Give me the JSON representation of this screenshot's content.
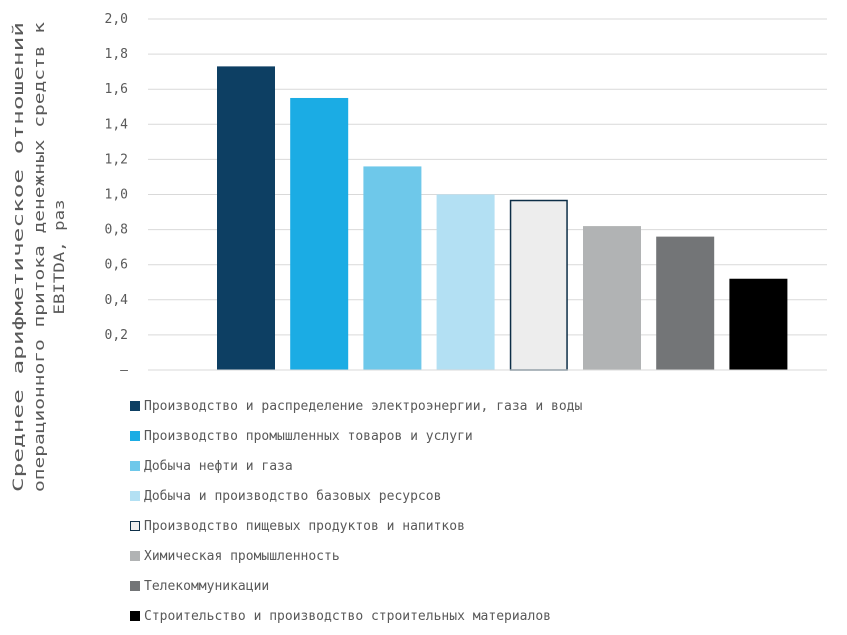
{
  "chart_data": {
    "type": "bar",
    "ylabel": "Среднее арифметическое отношений операционного притока денежных средств к EBITDA, раз",
    "ylim": [
      0,
      2.0
    ],
    "yticks": [
      {
        "value": 0,
        "label": "–"
      },
      {
        "value": 0.2,
        "label": "0,2"
      },
      {
        "value": 0.4,
        "label": "0,4"
      },
      {
        "value": 0.6,
        "label": "0,6"
      },
      {
        "value": 0.8,
        "label": "0,8"
      },
      {
        "value": 1.0,
        "label": "1,0"
      },
      {
        "value": 1.2,
        "label": "1,2"
      },
      {
        "value": 1.4,
        "label": "1,4"
      },
      {
        "value": 1.6,
        "label": "1,6"
      },
      {
        "value": 1.8,
        "label": "1,8"
      },
      {
        "value": 2.0,
        "label": "2,0"
      }
    ],
    "grid": true,
    "legend_position": "bottom",
    "series": [
      {
        "name": "Производство и распределение электроэнергии, газа и воды",
        "value": 1.73,
        "color": "#0d3f63",
        "border": "#0d3f63"
      },
      {
        "name": "Производство промышленных товаров и услуги",
        "value": 1.55,
        "color": "#1bace4",
        "border": "#1bace4"
      },
      {
        "name": "Добыча нефти и газа",
        "value": 1.16,
        "color": "#6ec8ea",
        "border": "#6ec8ea"
      },
      {
        "name": "Добыча и производство базовых ресурсов",
        "value": 1.0,
        "color": "#b3e0f3",
        "border": "#b3e0f3"
      },
      {
        "name": "Производство пищевых продуктов и напитков",
        "value": 0.97,
        "color": "#ededed",
        "border": "#0d2e47"
      },
      {
        "name": "Химическая промышленность",
        "value": 0.82,
        "color": "#b1b3b4",
        "border": "#b1b3b4"
      },
      {
        "name": "Телекоммуникации",
        "value": 0.76,
        "color": "#737577",
        "border": "#737577"
      },
      {
        "name": "Строительство и производство строительных материалов",
        "value": 0.52,
        "color": "#000000",
        "border": "#000000"
      }
    ]
  }
}
